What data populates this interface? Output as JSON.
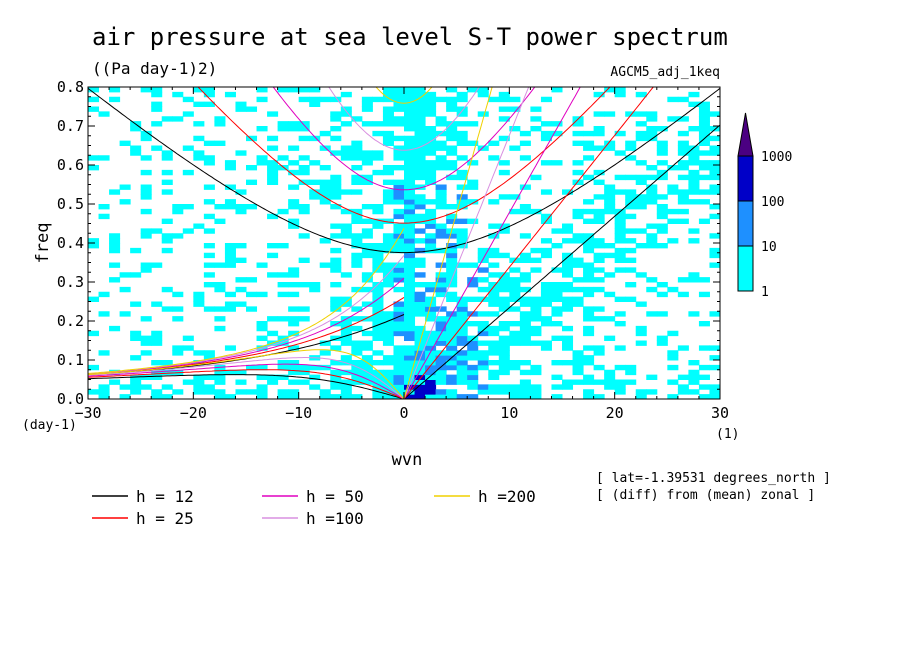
{
  "chart_data": {
    "type": "heatmap",
    "title": "air pressure at sea level S-T power spectrum",
    "units": "((Pa day-1)2)",
    "model": "AGCM5_adj_1keq",
    "xlabel": "wvn",
    "ylabel": "freq",
    "y_unit_label": "(day-1)",
    "x_unit_label": "(1)",
    "xlim": [
      -30,
      30
    ],
    "ylim": [
      0,
      0.8
    ],
    "x_ticks": [
      "-30",
      "-20",
      "-10",
      "0",
      "10",
      "20",
      "30"
    ],
    "y_ticks": [
      "0.0",
      "0.1",
      "0.2",
      "0.3",
      "0.4",
      "0.5",
      "0.6",
      "0.7",
      "0.8"
    ],
    "colorbar": {
      "levels": [
        "1",
        "10",
        "100",
        "1000"
      ],
      "colors": [
        "#00ffff",
        "#1e90ff",
        "#0000c8",
        "#4b0082"
      ]
    },
    "fill_colors": {
      "low": "#00ffff",
      "mid": "#1e90ff",
      "high": "#0000c8"
    },
    "dispersion_curves": [
      {
        "label": "h = 12",
        "h": 12,
        "color": "#000000"
      },
      {
        "label": "h = 25",
        "h": 25,
        "color": "#ff0000"
      },
      {
        "label": "h = 50",
        "h": 50,
        "color": "#e000c0"
      },
      {
        "label": "h =100",
        "h": 100,
        "color": "#d890e0"
      },
      {
        "label": "h =200",
        "h": 200,
        "color": "#f0d000"
      }
    ],
    "annotations": [
      "[ lat=-1.39531 degrees_north ]",
      "[ (diff) from (mean) zonal ]"
    ]
  }
}
